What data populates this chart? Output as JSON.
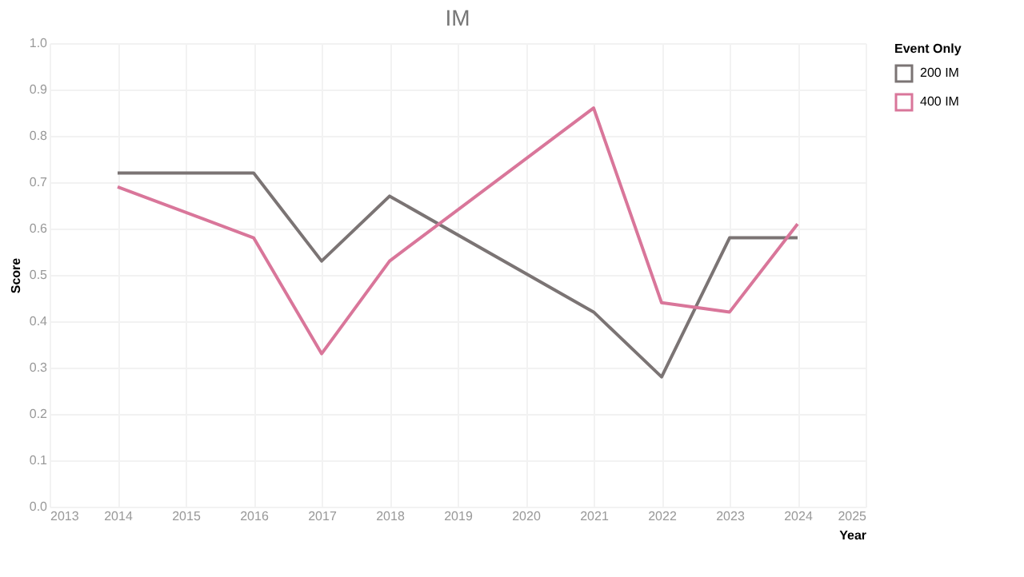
{
  "chart_data": {
    "type": "line",
    "title": "IM",
    "xlabel": "Year",
    "ylabel": "Score",
    "legend_title": "Event Only",
    "x": [
      2014,
      2016,
      2017,
      2018,
      2021,
      2022,
      2023,
      2024
    ],
    "series": [
      {
        "name": "200 IM",
        "color": "#7b7474",
        "values": [
          0.72,
          0.72,
          0.53,
          0.67,
          0.42,
          0.28,
          0.58,
          0.58
        ]
      },
      {
        "name": "400 IM",
        "color": "#d9769a",
        "values": [
          0.69,
          0.58,
          0.33,
          0.53,
          0.86,
          0.44,
          0.42,
          0.61
        ]
      }
    ],
    "xlim": [
      2013,
      2025
    ],
    "xticks": [
      2013,
      2014,
      2015,
      2016,
      2017,
      2018,
      2019,
      2020,
      2021,
      2022,
      2023,
      2024,
      2025
    ],
    "ylim": [
      0,
      1
    ],
    "yticks": [
      {
        "value": 0,
        "label": "0.0"
      },
      0.1,
      0.2,
      0.3,
      0.4,
      0.5,
      0.6,
      0.7,
      0.8,
      0.9,
      {
        "value": 1,
        "label": "1.0"
      }
    ],
    "grid": true,
    "legend": "top right",
    "marker": "none",
    "line_style": "solid"
  }
}
